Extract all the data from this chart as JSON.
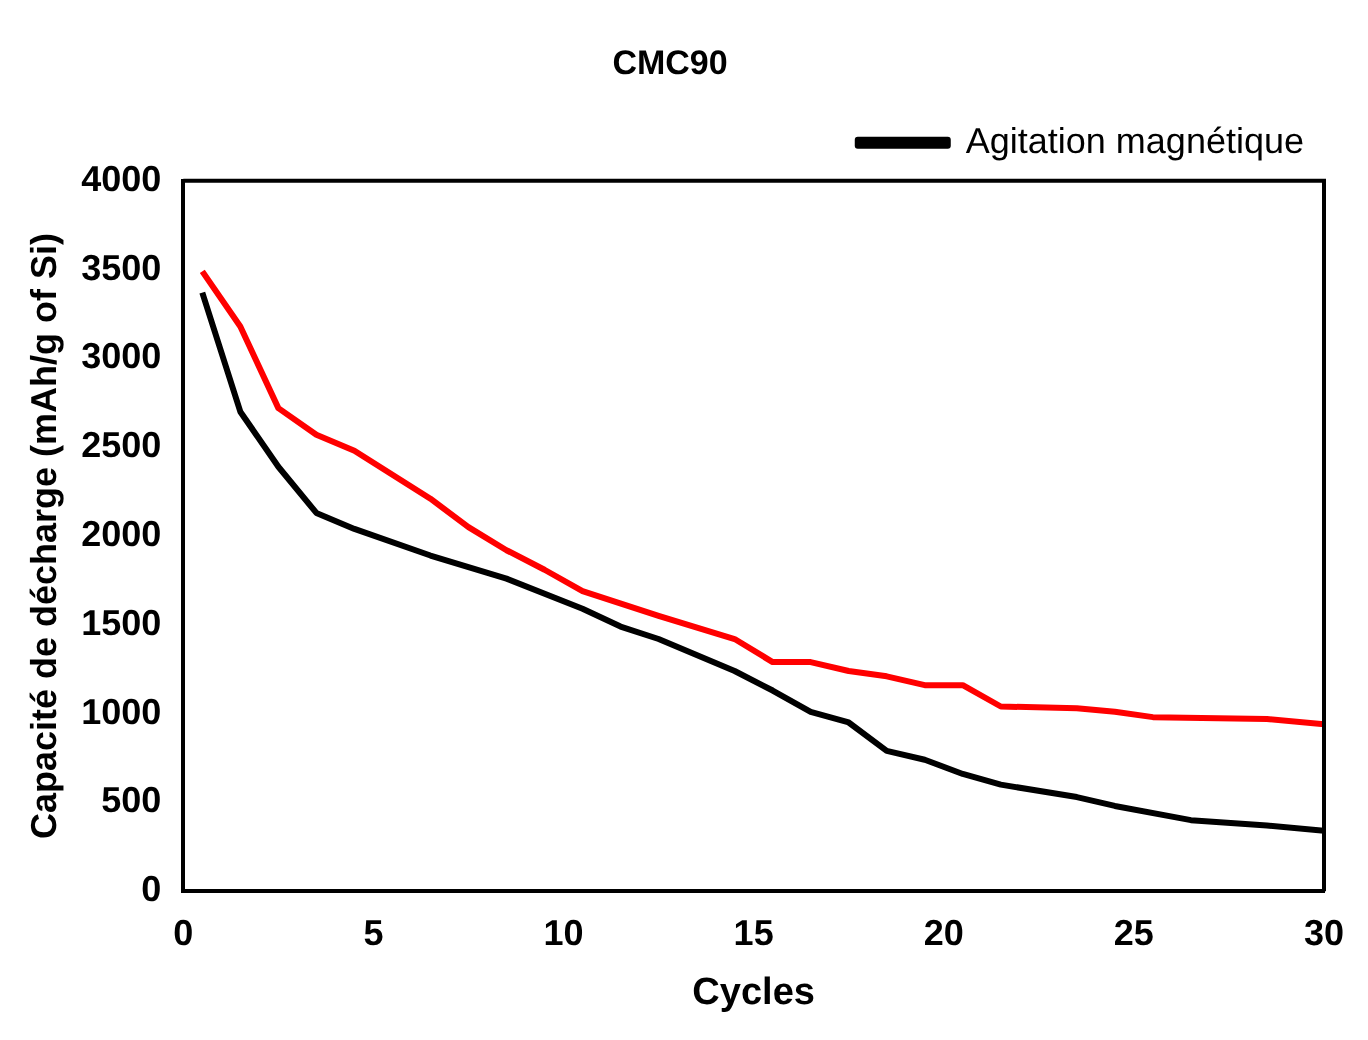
{
  "chart_data": {
    "type": "line",
    "title": "CMC90",
    "xlabel": "Cycles",
    "ylabel": "Capacité de décharge (mAh/g of Si)",
    "xlim": [
      0,
      30
    ],
    "xticks": [
      0,
      5,
      10,
      15,
      20,
      25,
      30
    ],
    "ylim": [
      0,
      4000
    ],
    "yticks": [
      0,
      500,
      1000,
      1500,
      2000,
      2500,
      3000,
      3500,
      4000
    ],
    "grid": false,
    "legend": "top right",
    "marker": "none",
    "line_style": "solid",
    "series": [
      {
        "name": "Agitation magnétique",
        "color": "#000000",
        "x": [
          0.5,
          1.5,
          2.5,
          3.5,
          4.5,
          6.5,
          8.5,
          10.5,
          11.5,
          12.5,
          14.5,
          15.5,
          16.5,
          17.5,
          18.5,
          19.5,
          20.5,
          21.5,
          23.5,
          24.5,
          26.5,
          28.5,
          30
        ],
        "values": [
          3370,
          2700,
          2390,
          2130,
          2040,
          1890,
          1760,
          1590,
          1490,
          1420,
          1240,
          1130,
          1010,
          950,
          790,
          740,
          660,
          600,
          530,
          480,
          400,
          370,
          340
        ]
      },
      {
        "color": "#ff0000",
        "x": [
          0.5,
          1.5,
          2.5,
          3.5,
          4.5,
          6.5,
          7.5,
          8.5,
          9.5,
          10.5,
          12.5,
          14.5,
          15.5,
          16.5,
          17.5,
          18.5,
          19.5,
          20.5,
          21.5,
          23.5,
          24.5,
          25.5,
          28.5,
          30
        ],
        "values": [
          3490,
          3180,
          2720,
          2570,
          2480,
          2210,
          2050,
          1920,
          1810,
          1690,
          1550,
          1420,
          1290,
          1290,
          1240,
          1210,
          1160,
          1160,
          1040,
          1030,
          1010,
          980,
          970,
          940
        ]
      }
    ]
  }
}
